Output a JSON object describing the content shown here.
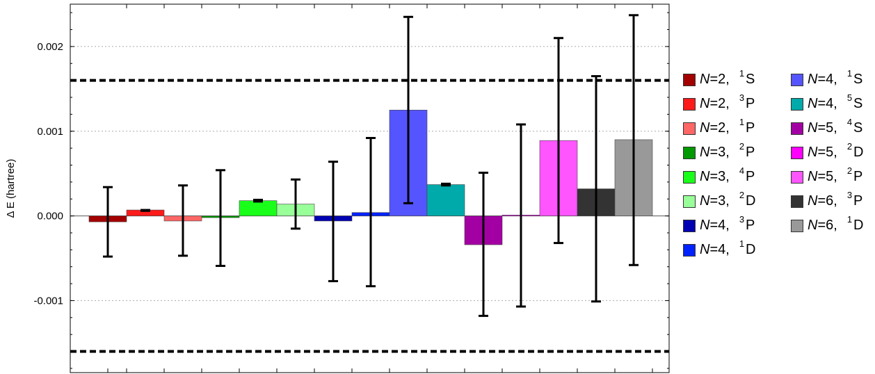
{
  "chart_data": {
    "type": "bar",
    "ylabel": "Δ E (hartree)",
    "ylim": [
      -0.00185,
      0.0025
    ],
    "yticks": [
      {
        "value": 0.002,
        "label": "0.002"
      },
      {
        "value": 0.001,
        "label": "0.001"
      },
      {
        "value": 0.0,
        "label": "0.000"
      },
      {
        "value": -0.001,
        "label": "-0.001"
      }
    ],
    "grid": "horizontal dotted",
    "reference_lines": [
      0.0016,
      -0.0016
    ],
    "legend_position": "right, two columns",
    "series": [
      {
        "n": "N",
        "eq": "=2,",
        "mult": "1",
        "term": "S",
        "color": "#a30000",
        "value": -7e-05,
        "err_low": -0.00048,
        "err_high": 0.00034
      },
      {
        "n": "N",
        "eq": "=2,",
        "mult": "3",
        "term": "P",
        "color": "#ff1a1a",
        "value": 7e-05,
        "err_low": 6e-05,
        "err_high": 7e-05
      },
      {
        "n": "N",
        "eq": "=2,",
        "mult": "1",
        "term": "P",
        "color": "#ff6666",
        "value": -6e-05,
        "err_low": -0.00047,
        "err_high": 0.00036
      },
      {
        "n": "N",
        "eq": "=3,",
        "mult": "2",
        "term": "P",
        "color": "#009900",
        "value": -2e-05,
        "err_low": -0.00059,
        "err_high": 0.00054
      },
      {
        "n": "N",
        "eq": "=3,",
        "mult": "4",
        "term": "P",
        "color": "#1aff1a",
        "value": 0.00018,
        "err_low": 0.00017,
        "err_high": 0.00019
      },
      {
        "n": "N",
        "eq": "=3,",
        "mult": "2",
        "term": "D",
        "color": "#99ff99",
        "value": 0.00014,
        "err_low": -0.00015,
        "err_high": 0.00043
      },
      {
        "n": "N",
        "eq": "=4,",
        "mult": "3",
        "term": "P",
        "color": "#0000b3",
        "value": -6e-05,
        "err_low": -0.00077,
        "err_high": 0.00064
      },
      {
        "n": "N",
        "eq": "=4,",
        "mult": "1",
        "term": "D",
        "color": "#0022ff",
        "value": 4e-05,
        "err_low": -0.00083,
        "err_high": 0.00092
      },
      {
        "n": "N",
        "eq": "=4,",
        "mult": "1",
        "term": "S",
        "color": "#5555ff",
        "value": 0.00125,
        "err_low": 0.00015,
        "err_high": 0.00235
      },
      {
        "n": "N",
        "eq": "=4,",
        "mult": "5",
        "term": "S",
        "color": "#00aaaa",
        "value": 0.00037,
        "err_low": 0.00036,
        "err_high": 0.00038
      },
      {
        "n": "N",
        "eq": "=5,",
        "mult": "4",
        "term": "S",
        "color": "#a300a3",
        "value": -0.00034,
        "err_low": -0.00118,
        "err_high": 0.00051
      },
      {
        "n": "N",
        "eq": "=5,",
        "mult": "2",
        "term": "D",
        "color": "#ff00ff",
        "value": 1e-05,
        "err_low": -0.00107,
        "err_high": 0.00108
      },
      {
        "n": "N",
        "eq": "=5,",
        "mult": "2",
        "term": "P",
        "color": "#ff55ff",
        "value": 0.00089,
        "err_low": -0.00032,
        "err_high": 0.0021
      },
      {
        "n": "N",
        "eq": "=6,",
        "mult": "3",
        "term": "P",
        "color": "#333333",
        "value": 0.00032,
        "err_low": -0.00101,
        "err_high": 0.00165
      },
      {
        "n": "N",
        "eq": "=6,",
        "mult": "1",
        "term": "D",
        "color": "#999999",
        "value": 0.0009,
        "err_low": -0.00058,
        "err_high": 0.00237
      }
    ]
  }
}
